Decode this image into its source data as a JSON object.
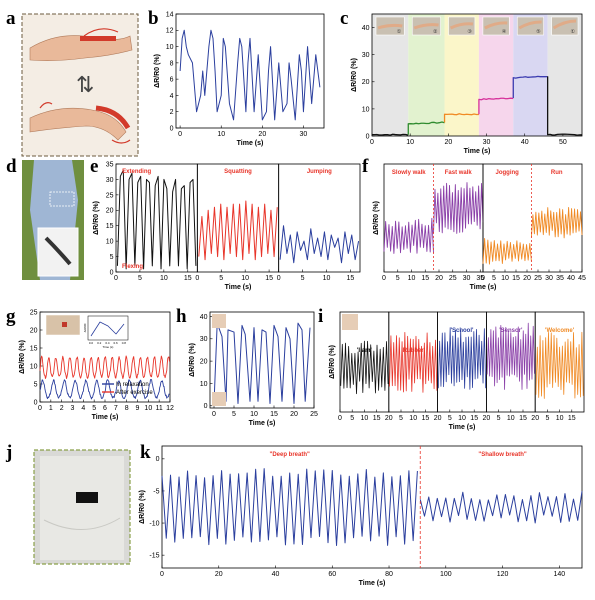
{
  "figure": {
    "panel_letters": [
      "a",
      "b",
      "c",
      "d",
      "e",
      "f",
      "g",
      "h",
      "i",
      "j",
      "k"
    ]
  },
  "colors": {
    "blue": "#2b3f9e",
    "black": "#111111",
    "red": "#e8352a",
    "purple": "#8a3fa8",
    "orange": "#f08a24",
    "green": "#2e8b2e",
    "pink_bg": "#f6d6ec",
    "yellow_bg": "#fbf6c9",
    "green_bg": "#e2f2cf",
    "lav_bg": "#d9d7f2",
    "grey_bg": "#e6e6e6"
  },
  "chart_data": [
    {
      "id": "b",
      "type": "line",
      "xlabel": "Time (s)",
      "ylabel": "ΔR/R0 (%)",
      "xlim": [
        -1,
        35
      ],
      "ylim": [
        0,
        14
      ],
      "xticks": [
        0,
        10,
        20,
        30
      ],
      "yticks": [
        0,
        2,
        4,
        6,
        8,
        10,
        12,
        14
      ],
      "series": [
        {
          "color": "blue",
          "x": [
            0,
            0.5,
            1,
            1.5,
            2,
            3,
            4,
            5,
            5.5,
            6,
            7,
            7.5,
            8,
            8.5,
            9,
            10,
            10.5,
            11,
            12,
            13,
            14,
            14.5,
            15,
            16,
            16.5,
            17,
            18,
            19,
            20,
            21,
            21.5,
            22,
            23,
            24,
            25,
            26,
            26.5,
            27,
            28,
            29,
            29.5,
            30,
            31,
            32,
            33,
            34
          ],
          "y": [
            7,
            11,
            12,
            10,
            9,
            8,
            2,
            4,
            7,
            4,
            10,
            12,
            11,
            7,
            2,
            4,
            11,
            10,
            3,
            1,
            8,
            11,
            10,
            2,
            8,
            11,
            2,
            9,
            1,
            2,
            7,
            10,
            1,
            8,
            2,
            3,
            8,
            6,
            1,
            9,
            7,
            2,
            10,
            3,
            9,
            5
          ]
        }
      ]
    },
    {
      "id": "c",
      "type": "line",
      "xlabel": "Time (s)",
      "ylabel": "ΔR/R0 (%)",
      "xlim": [
        0,
        55
      ],
      "ylim": [
        0,
        45
      ],
      "xticks": [
        0,
        10,
        20,
        30,
        40,
        50
      ],
      "yticks": [
        0,
        10,
        20,
        30,
        40
      ],
      "stage_labels": [
        "①",
        "②",
        "③",
        "④",
        "⑤",
        "①"
      ],
      "segments": [
        {
          "color": "black",
          "x": [
            0,
            9.5
          ],
          "y": [
            0.5,
            0.5
          ]
        },
        {
          "color": "green",
          "x": [
            9.5,
            19
          ],
          "y": [
            4.5,
            5
          ]
        },
        {
          "color": "orange",
          "x": [
            19,
            28
          ],
          "y": [
            8,
            8
          ]
        },
        {
          "color": "pink",
          "x": [
            28,
            37
          ],
          "y": [
            13.5,
            14
          ]
        },
        {
          "color": "purple",
          "x": [
            37,
            46
          ],
          "y": [
            21.5,
            22
          ]
        },
        {
          "color": "black",
          "x": [
            46,
            55
          ],
          "y": [
            0.5,
            0.5
          ]
        }
      ]
    },
    {
      "id": "e",
      "type": "line",
      "xlabel": "Time (s)",
      "ylabel": "ΔR/R0 (%)",
      "yticks": [
        0,
        5,
        10,
        15,
        20,
        25,
        30,
        35
      ],
      "ylim": [
        0,
        35
      ],
      "annotations": [
        "Extending",
        "Flexing",
        "Squatting",
        "Jumping"
      ],
      "subpanels": [
        {
          "label": "Extending",
          "color": "black",
          "xlim": [
            0,
            17
          ],
          "xticks": [
            0,
            5,
            10,
            15
          ],
          "y": [
            2,
            31,
            33,
            1,
            30,
            32,
            2,
            29,
            31,
            1,
            30,
            29,
            2,
            28,
            31,
            1,
            30,
            27,
            2,
            26,
            30,
            2,
            27,
            28,
            1,
            29,
            30,
            2
          ]
        },
        {
          "label": "Squatting",
          "color": "red",
          "xlim": [
            0,
            17
          ],
          "xticks": [
            0,
            5,
            10,
            15
          ],
          "y": [
            5,
            18,
            4,
            20,
            6,
            21,
            5,
            22,
            4,
            21,
            6,
            22,
            5,
            22,
            4,
            23,
            6,
            22,
            4,
            21,
            5,
            22,
            6,
            20,
            5,
            21
          ]
        },
        {
          "label": "Jumping",
          "color": "blue",
          "xlim": [
            0,
            17
          ],
          "xticks": [
            0,
            5,
            10,
            15
          ],
          "y": [
            4,
            15,
            6,
            12,
            3,
            13,
            7,
            10,
            4,
            14,
            6,
            11,
            5,
            13,
            4,
            12,
            8,
            11,
            3,
            13,
            6,
            12,
            4,
            10
          ]
        }
      ]
    },
    {
      "id": "f",
      "type": "line",
      "xlabel": "Time (s)",
      "ylabel": "ΔR/R0 (%)",
      "yticks": [],
      "ylim": [
        0,
        70
      ],
      "subpanels": [
        {
          "label": "Slowly walk",
          "xlim": [
            0,
            36
          ],
          "xticks": [
            0,
            5,
            10,
            15,
            20,
            25,
            30,
            35
          ],
          "parts": [
            {
              "color": "purple",
              "x0": 0,
              "x1": 18,
              "n": 30,
              "lo": 12,
              "hi": 35
            },
            {
              "color": "purple",
              "x0": 18,
              "x1": 36,
              "n": 34,
              "lo": 25,
              "hi": 58
            }
          ],
          "label2": "Fast walk"
        },
        {
          "label": "Jogging",
          "xlim": [
            0,
            45
          ],
          "xticks": [
            0,
            5,
            10,
            15,
            20,
            25,
            30,
            35,
            40,
            45
          ],
          "parts": [
            {
              "color": "orange",
              "x0": 0,
              "x1": 22,
              "n": 30,
              "lo": 5,
              "hi": 22
            },
            {
              "color": "orange",
              "x0": 22,
              "x1": 45,
              "n": 34,
              "lo": 22,
              "hi": 42
            }
          ],
          "label2": "Run"
        }
      ]
    },
    {
      "id": "g",
      "type": "line",
      "xlabel": "Time (s)",
      "ylabel": "ΔR/R0 (%)",
      "xlim": [
        0,
        12
      ],
      "ylim": [
        0,
        25
      ],
      "xticks": [
        0,
        1,
        2,
        3,
        4,
        5,
        6,
        7,
        8,
        9,
        10,
        11,
        12
      ],
      "yticks": [
        0,
        5,
        10,
        15,
        20,
        25
      ],
      "legend": [
        "In relaxation",
        "After exercise"
      ],
      "series": [
        {
          "name": "In relaxation",
          "color": "blue",
          "period": 1.0,
          "base": 3,
          "amp": 3
        },
        {
          "name": "After exercise",
          "color": "red",
          "period": 0.65,
          "base": 9,
          "amp": 3.5
        }
      ],
      "inset": {
        "xlabel": "Time (s)",
        "ylabel": "ΔR/R0",
        "xticks": [
          0.0,
          0.2,
          0.4,
          0.6,
          0.8
        ]
      }
    },
    {
      "id": "h",
      "type": "line",
      "xlabel": "Time (s)",
      "ylabel": "ΔR/R0 (%)",
      "xlim": [
        -1,
        25
      ],
      "ylim": [
        -1,
        42
      ],
      "xticks": [
        0,
        5,
        10,
        15,
        20,
        25
      ],
      "yticks": [
        0,
        10,
        20,
        30,
        40
      ],
      "series": [
        {
          "color": "blue",
          "x": [
            0,
            0.8,
            2,
            3,
            3.5,
            5,
            6,
            7,
            7.8,
            9,
            10,
            11,
            12,
            13,
            14,
            15,
            16,
            17,
            18,
            19,
            20,
            21,
            22,
            22.8,
            24
          ],
          "y": [
            1,
            37,
            31,
            2,
            34,
            33,
            1,
            36,
            32,
            2,
            35,
            2,
            34,
            33,
            1,
            36,
            31,
            2,
            35,
            30,
            1,
            37,
            34,
            2,
            35
          ]
        }
      ]
    },
    {
      "id": "i",
      "type": "line",
      "xlabel": "Time (s)",
      "ylabel": "ΔR/R0 (%)",
      "subpanels": [
        {
          "label": "'I am'",
          "color": "black",
          "xlim": [
            0,
            20
          ],
          "xticks": [
            0,
            5,
            10,
            15,
            20
          ]
        },
        {
          "label": "'Rubber'",
          "color": "red",
          "xlim": [
            0,
            20
          ],
          "xticks": [
            5,
            10,
            15,
            20
          ]
        },
        {
          "label": "'School'",
          "color": "blue",
          "xlim": [
            0,
            20
          ],
          "xticks": [
            5,
            10,
            15,
            20
          ]
        },
        {
          "label": "'Sensor'",
          "color": "purple",
          "xlim": [
            0,
            20
          ],
          "xticks": [
            5,
            10,
            15,
            20
          ]
        },
        {
          "label": "'Welcome'",
          "color": "orange",
          "xlim": [
            0,
            20
          ],
          "xticks": [
            5,
            10,
            15
          ]
        }
      ]
    },
    {
      "id": "k",
      "type": "line",
      "xlabel": "Time (s)",
      "ylabel": "ΔR/R0 (%)",
      "xlim": [
        0,
        148
      ],
      "ylim": [
        -17,
        2
      ],
      "xticks": [
        0,
        20,
        40,
        60,
        80,
        100,
        120,
        140
      ],
      "yticks": [
        0,
        -5,
        -10,
        -15
      ],
      "annotations": [
        "\"Deep breath\"",
        "\"Shallow breath\""
      ],
      "divider_x": 91,
      "series": [
        {
          "color": "blue",
          "name": "Deep breath",
          "x0": 0,
          "x1": 91,
          "period": 3.0,
          "hi": -1.5,
          "lo": -13.5
        },
        {
          "color": "blue",
          "name": "Shallow breath",
          "x0": 91,
          "x1": 148,
          "period": 3.0,
          "hi": -5,
          "lo": -10
        }
      ]
    }
  ]
}
